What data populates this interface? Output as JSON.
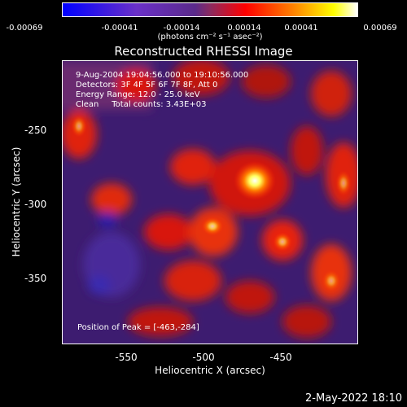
{
  "colorbar": {
    "ticks": [
      "-0.00069",
      "-0.00041",
      "-0.00014",
      "0.00014",
      "0.00041",
      "0.00069"
    ],
    "unit": "(photons cm⁻² s⁻¹ asec⁻²)",
    "colors": [
      "#0000ff",
      "#6a30c8",
      "#8a2a60",
      "#ff0000",
      "#ff8000",
      "#ffff00",
      "#ffffff"
    ]
  },
  "title": "Reconstructed RHESSI Image",
  "info": {
    "line1": "9-Aug-2004 19:04:56.000 to 19:10:56.000",
    "line2": "Detectors: 3F 4F 5F 6F 7F 8F, Att 0",
    "line3": "Energy Range: 12.0 - 25.0 keV",
    "line4": "Clean     Total counts: 3.43E+03"
  },
  "peak_text": "Position of Peak = [-463,-284]",
  "axes": {
    "xlabel": "Heliocentric X (arcsec)",
    "ylabel": "Heliocentric Y (arcsec)",
    "xticks": [
      "-550",
      "-500",
      "-450"
    ],
    "yticks": [
      "-250",
      "-300",
      "-350"
    ]
  },
  "footer_date": "2-May-2022 18:10"
}
